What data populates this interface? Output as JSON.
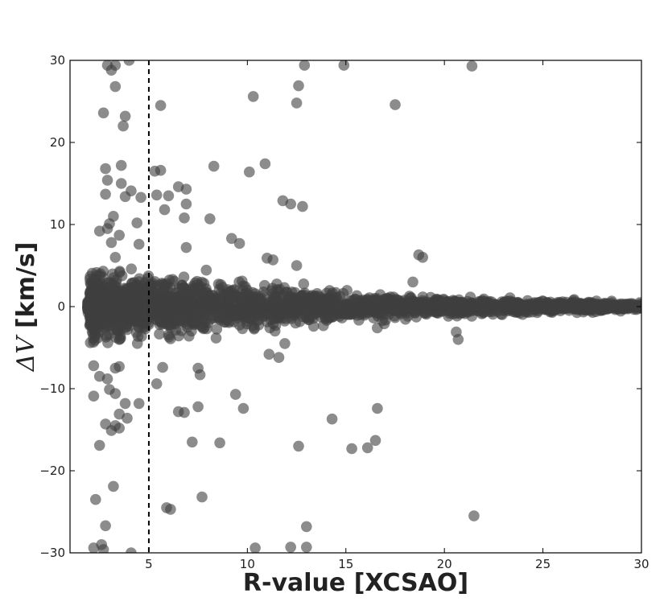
{
  "chart_data": {
    "type": "scatter",
    "xlabel": "R-value [XCSAO]",
    "ylabel_symbol": "ΔV",
    "ylabel_unit": "[km/s]",
    "xlim": [
      1,
      30
    ],
    "ylim": [
      -30,
      30
    ],
    "x_ticks": [
      5,
      10,
      15,
      20,
      25,
      30
    ],
    "y_ticks": [
      -30,
      -20,
      -10,
      0,
      10,
      20,
      30
    ],
    "x_tick_labels": [
      "5",
      "10",
      "15",
      "20",
      "25",
      "30"
    ],
    "y_tick_labels": [
      "−30",
      "−20",
      "−10",
      "0",
      "10",
      "20",
      "30"
    ],
    "grid": false,
    "marker_color": "#404040",
    "marker_opacity": 0.6,
    "reference_line": {
      "x": 5,
      "style": "dashed",
      "color": "#000000"
    },
    "core_band": [
      {
        "x": 2.0,
        "spread": 3.5
      },
      {
        "x": 5.0,
        "spread": 3.0
      },
      {
        "x": 10.0,
        "spread": 2.0
      },
      {
        "x": 15.0,
        "spread": 1.3
      },
      {
        "x": 20.0,
        "spread": 0.9
      },
      {
        "x": 25.0,
        "spread": 0.6
      },
      {
        "x": 30.0,
        "spread": 0.4
      }
    ],
    "outliers": [
      [
        2.9,
        29.4
      ],
      [
        3.3,
        29.4
      ],
      [
        4.0,
        30.0
      ],
      [
        3.1,
        28.8
      ],
      [
        3.3,
        26.8
      ],
      [
        2.7,
        23.6
      ],
      [
        3.8,
        23.2
      ],
      [
        3.7,
        22.0
      ],
      [
        5.6,
        24.5
      ],
      [
        10.3,
        25.6
      ],
      [
        12.5,
        24.8
      ],
      [
        12.6,
        26.9
      ],
      [
        12.9,
        29.4
      ],
      [
        14.9,
        29.4
      ],
      [
        17.5,
        24.6
      ],
      [
        21.4,
        29.3
      ],
      [
        2.8,
        16.8
      ],
      [
        2.9,
        15.4
      ],
      [
        3.6,
        15.0
      ],
      [
        3.6,
        17.2
      ],
      [
        5.3,
        16.5
      ],
      [
        5.6,
        16.6
      ],
      [
        5.4,
        13.6
      ],
      [
        6.0,
        13.5
      ],
      [
        6.5,
        14.6
      ],
      [
        6.9,
        14.3
      ],
      [
        4.1,
        14.1
      ],
      [
        3.8,
        13.4
      ],
      [
        2.8,
        13.7
      ],
      [
        3.2,
        11.0
      ],
      [
        3.0,
        10.1
      ],
      [
        4.4,
        10.2
      ],
      [
        4.6,
        13.3
      ],
      [
        5.8,
        11.8
      ],
      [
        6.9,
        12.5
      ],
      [
        6.8,
        10.8
      ],
      [
        8.1,
        10.7
      ],
      [
        8.3,
        17.1
      ],
      [
        10.1,
        16.4
      ],
      [
        10.9,
        17.4
      ],
      [
        11.8,
        12.9
      ],
      [
        12.2,
        12.5
      ],
      [
        12.8,
        12.2
      ],
      [
        9.2,
        8.3
      ],
      [
        9.6,
        7.7
      ],
      [
        11.0,
        5.9
      ],
      [
        11.3,
        5.7
      ],
      [
        12.5,
        5.0
      ],
      [
        18.7,
        6.3
      ],
      [
        18.9,
        6.0
      ],
      [
        18.4,
        3.0
      ],
      [
        2.9,
        9.5
      ],
      [
        3.1,
        7.8
      ],
      [
        3.5,
        8.7
      ],
      [
        4.5,
        7.6
      ],
      [
        6.9,
        7.2
      ],
      [
        3.3,
        6.0
      ],
      [
        2.5,
        9.2
      ],
      [
        2.2,
        -7.2
      ],
      [
        2.5,
        -8.5
      ],
      [
        2.9,
        -8.8
      ],
      [
        3.3,
        -7.5
      ],
      [
        3.5,
        -7.3
      ],
      [
        2.2,
        -10.9
      ],
      [
        3.0,
        -10.1
      ],
      [
        3.3,
        -10.6
      ],
      [
        3.8,
        -11.8
      ],
      [
        4.5,
        -11.8
      ],
      [
        2.8,
        -14.3
      ],
      [
        3.3,
        -14.5
      ],
      [
        3.5,
        -13.1
      ],
      [
        3.9,
        -13.6
      ],
      [
        3.1,
        -15.1
      ],
      [
        3.5,
        -14.8
      ],
      [
        2.5,
        -16.9
      ],
      [
        3.2,
        -21.9
      ],
      [
        2.3,
        -23.5
      ],
      [
        2.8,
        -26.7
      ],
      [
        2.2,
        -29.4
      ],
      [
        2.6,
        -29.0
      ],
      [
        2.7,
        -29.6
      ],
      [
        4.1,
        -30.0
      ],
      [
        5.4,
        -9.4
      ],
      [
        5.7,
        -7.4
      ],
      [
        6.5,
        -12.8
      ],
      [
        6.8,
        -12.9
      ],
      [
        7.2,
        -16.5
      ],
      [
        7.5,
        -12.2
      ],
      [
        7.5,
        -7.5
      ],
      [
        7.6,
        -8.3
      ],
      [
        8.6,
        -16.6
      ],
      [
        9.4,
        -10.7
      ],
      [
        9.8,
        -12.4
      ],
      [
        7.7,
        -23.2
      ],
      [
        5.9,
        -24.5
      ],
      [
        6.1,
        -24.7
      ],
      [
        10.4,
        -29.4
      ],
      [
        12.2,
        -29.3
      ],
      [
        13.0,
        -29.3
      ],
      [
        13.0,
        -26.8
      ],
      [
        12.6,
        -17.0
      ],
      [
        14.3,
        -13.7
      ],
      [
        15.3,
        -17.3
      ],
      [
        16.1,
        -17.2
      ],
      [
        16.5,
        -16.3
      ],
      [
        16.6,
        -12.4
      ],
      [
        21.5,
        -25.5
      ],
      [
        20.6,
        -3.1
      ],
      [
        20.7,
        -4.0
      ],
      [
        11.1,
        -5.8
      ],
      [
        11.6,
        -6.2
      ],
      [
        11.9,
        -4.5
      ]
    ]
  }
}
